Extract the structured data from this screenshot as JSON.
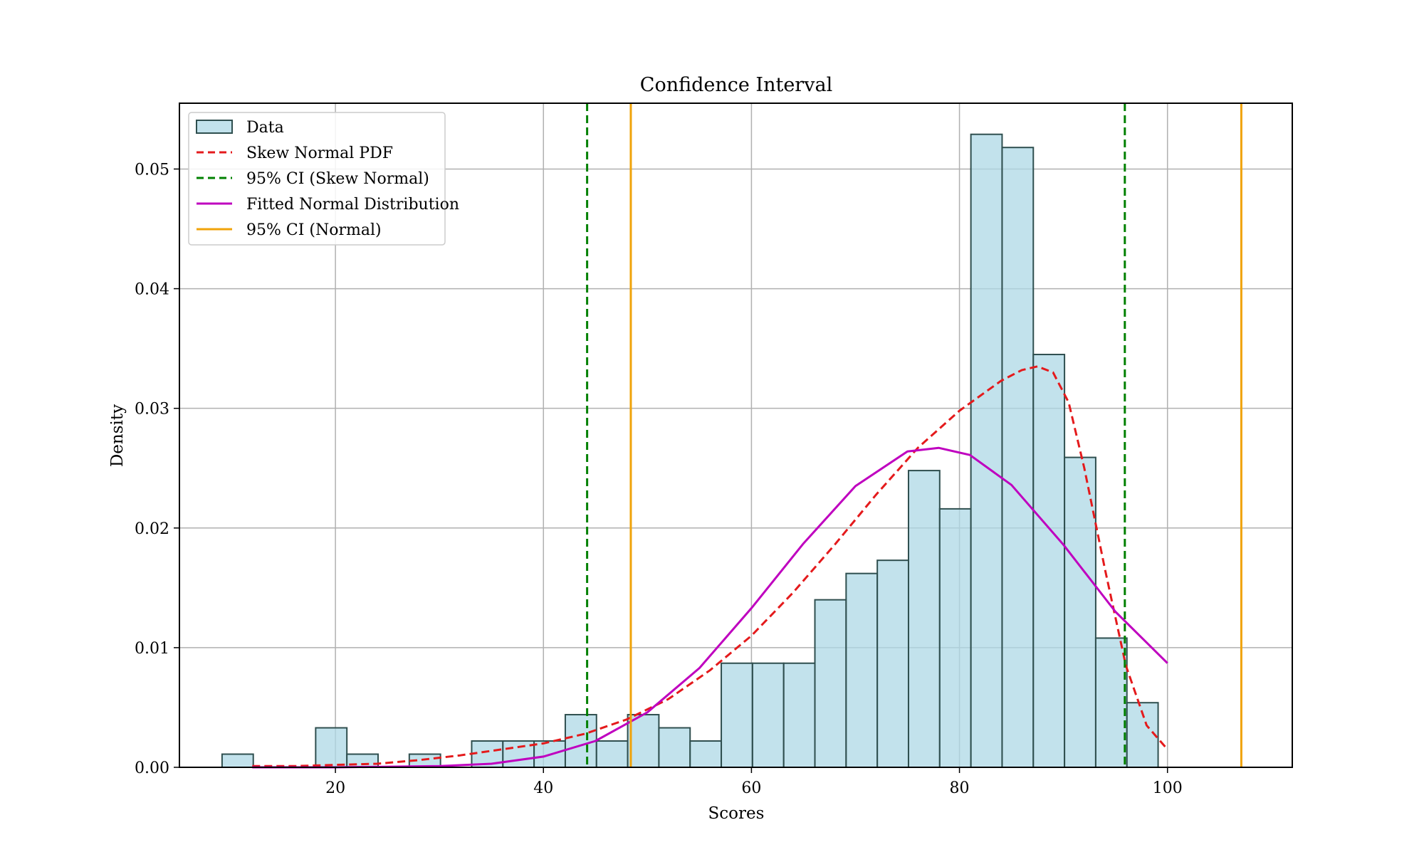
{
  "chart_data": {
    "type": "bar",
    "title": "Confidence Interval",
    "xlabel": "Scores",
    "ylabel": "Density",
    "xlim": [
      5,
      112
    ],
    "ylim": [
      0,
      0.0555
    ],
    "grid": true,
    "legend_placement": "top-left",
    "x_ticks": [
      20,
      40,
      60,
      80,
      100
    ],
    "x_tick_labels": [
      "20",
      "40",
      "60",
      "80",
      "100"
    ],
    "y_ticks": [
      0.0,
      0.01,
      0.02,
      0.03,
      0.04,
      0.05
    ],
    "y_tick_labels": [
      "0.00",
      "0.01",
      "0.02",
      "0.03",
      "0.04",
      "0.05"
    ],
    "histogram": {
      "name": "Data",
      "color": "#add8e6",
      "edge_color": "#2f4f4f",
      "bin_edges": [
        9.1,
        12.1,
        15.1,
        18.1,
        21.1,
        24.1,
        27.1,
        30.1,
        33.1,
        36.1,
        39.1,
        42.1,
        45.1,
        48.1,
        51.1,
        54.1,
        57.1,
        60.1,
        63.1,
        66.1,
        69.1,
        72.1,
        75.1,
        78.1,
        81.1,
        84.1,
        87.1,
        90.1,
        93.1,
        96.1,
        99.1
      ],
      "values": [
        0.0011,
        0,
        0,
        0.0033,
        0.0011,
        0,
        0.0011,
        0,
        0.0022,
        0.0022,
        0.0022,
        0.0044,
        0.0022,
        0.0044,
        0.0033,
        0.0022,
        0.0087,
        0.0087,
        0.0087,
        0.014,
        0.0162,
        0.0173,
        0.0248,
        0.0216,
        0.0529,
        0.0518,
        0.0345,
        0.0259,
        0.0108,
        0.0054
      ]
    },
    "series": [
      {
        "name": "Skew Normal PDF",
        "color": "#e41a1c",
        "style": "dashed",
        "x": [
          12,
          16,
          20,
          24,
          28,
          32,
          36,
          40,
          44,
          48,
          52,
          56,
          60,
          64,
          68,
          72,
          76,
          80,
          84,
          86,
          87.5,
          89,
          90.5,
          92,
          94,
          96,
          98,
          100
        ],
        "y": [
          0.0001,
          0.0001,
          0.0002,
          0.0003,
          0.0006,
          0.001,
          0.0015,
          0.002,
          0.0028,
          0.004,
          0.0057,
          0.0081,
          0.011,
          0.0146,
          0.0186,
          0.0228,
          0.0267,
          0.0298,
          0.0323,
          0.0332,
          0.0335,
          0.033,
          0.0305,
          0.025,
          0.0165,
          0.0085,
          0.0035,
          0.0015
        ]
      },
      {
        "name": "Fitted Normal Distribution",
        "color": "#bf00bf",
        "style": "solid",
        "x": [
          12,
          20,
          30,
          35,
          40,
          45,
          50,
          55,
          60,
          65,
          70,
          75,
          78,
          81,
          85,
          90,
          95,
          100
        ],
        "y": [
          0.0,
          0.0,
          0.0001,
          0.0003,
          0.0009,
          0.0022,
          0.0046,
          0.0083,
          0.0133,
          0.0187,
          0.0235,
          0.0264,
          0.0267,
          0.0261,
          0.0236,
          0.0186,
          0.013,
          0.0087
        ]
      }
    ],
    "vertical_lines": [
      {
        "name": "95% CI (Skew Normal)",
        "color": "#008000",
        "style": "dashed",
        "x": [
          44.2,
          95.9
        ]
      },
      {
        "name": "95% CI (Normal)",
        "color": "#f0a30a",
        "style": "solid",
        "x": [
          48.4,
          107.1
        ]
      }
    ],
    "legend": [
      "Data",
      "Skew Normal PDF",
      "95% CI (Skew Normal)",
      "Fitted Normal Distribution",
      "95% CI (Normal)"
    ]
  }
}
